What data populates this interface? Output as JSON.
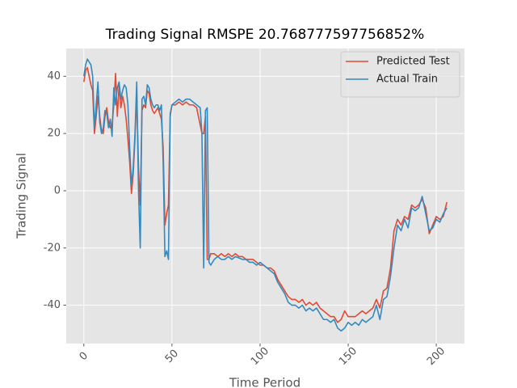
{
  "chart_data": {
    "type": "line",
    "title": "Trading Signal RMSPE 20.768777597756852%",
    "xlabel": "Time Period",
    "ylabel": "Trading Signal",
    "x": [
      0,
      1,
      2,
      3,
      4,
      5,
      6,
      7,
      8,
      9,
      10,
      11,
      12,
      13,
      14,
      15,
      16,
      17,
      18,
      19,
      20,
      21,
      22,
      23,
      24,
      25,
      26,
      27,
      28,
      29,
      30,
      31,
      32,
      33,
      34,
      35,
      36,
      37,
      38,
      39,
      40,
      41,
      42,
      43,
      44,
      45,
      46,
      47,
      48,
      49,
      50,
      52,
      54,
      56,
      58,
      60,
      62,
      64,
      66,
      67,
      68,
      69,
      70,
      71,
      72,
      74,
      76,
      78,
      80,
      82,
      84,
      86,
      88,
      90,
      92,
      94,
      96,
      98,
      100,
      102,
      104,
      106,
      108,
      110,
      112,
      114,
      116,
      118,
      120,
      122,
      124,
      126,
      128,
      130,
      132,
      134,
      136,
      138,
      140,
      142,
      144,
      146,
      148,
      150,
      152,
      154,
      156,
      158,
      160,
      162,
      164,
      166,
      168,
      170,
      172,
      174,
      176,
      178,
      180,
      182,
      184,
      186,
      188,
      190,
      192,
      194,
      196,
      198,
      200,
      202,
      204,
      206
    ],
    "series": [
      {
        "name": "Predicted Test",
        "color": "#E24A33",
        "values": [
          38,
          42,
          43,
          40,
          37,
          35,
          20,
          26,
          33,
          26,
          21,
          20,
          26,
          29,
          24,
          22,
          23,
          30,
          41,
          26,
          37,
          29,
          33,
          30,
          25,
          18,
          10,
          -1,
          6,
          18,
          34,
          8,
          -5,
          28,
          30,
          29,
          35,
          34,
          30,
          28,
          27,
          28,
          29,
          27,
          25,
          15,
          -12,
          -8,
          -5,
          26,
          30,
          30,
          31,
          30,
          31,
          30,
          30,
          29,
          23,
          20,
          20,
          26,
          -24,
          -24,
          -22,
          -22,
          -23,
          -22,
          -23,
          -22,
          -23,
          -22,
          -23,
          -23,
          -24,
          -24,
          -24,
          -25,
          -26,
          -26,
          -27,
          -27,
          -28,
          -31,
          -33,
          -35,
          -37,
          -38,
          -38,
          -39,
          -38,
          -40,
          -39,
          -40,
          -39,
          -41,
          -42,
          -43,
          -44,
          -44,
          -46,
          -45,
          -42,
          -44,
          -44,
          -44,
          -43,
          -42,
          -43,
          -42,
          -41,
          -38,
          -41,
          -35,
          -34,
          -27,
          -14,
          -10,
          -12,
          -9,
          -10,
          -5,
          -6,
          -5,
          -3,
          -6,
          -15,
          -12,
          -9,
          -10,
          -9,
          -4
        ]
      },
      {
        "name": "Actual Train",
        "color": "#348ABD",
        "values": [
          40,
          44,
          46,
          45,
          44,
          40,
          22,
          30,
          38,
          24,
          20,
          22,
          28,
          27,
          22,
          25,
          19,
          36,
          30,
          36,
          38,
          32,
          35,
          37,
          36,
          30,
          15,
          2,
          8,
          20,
          38,
          0,
          -20,
          32,
          33,
          30,
          37,
          36,
          32,
          30,
          29,
          30,
          30,
          28,
          30,
          10,
          -23,
          -21,
          -24,
          27,
          30,
          31,
          32,
          31,
          32,
          32,
          31,
          30,
          29,
          20,
          -27,
          28,
          29,
          -25,
          -26,
          -24,
          -23,
          -24,
          -24,
          -23,
          -24,
          -23,
          -23.5,
          -24,
          -24,
          -25,
          -25,
          -26,
          -25,
          -26,
          -27,
          -28,
          -29,
          -32,
          -34,
          -36,
          -39,
          -40,
          -40,
          -41,
          -40,
          -42,
          -41,
          -42,
          -41,
          -43,
          -45,
          -45,
          -46,
          -45,
          -48,
          -49,
          -48,
          -46,
          -47,
          -46,
          -47,
          -45,
          -46,
          -45,
          -44,
          -40,
          -45,
          -38,
          -37,
          -30,
          -20,
          -12,
          -14,
          -10,
          -13,
          -6,
          -7,
          -6,
          -2,
          -8,
          -14,
          -13,
          -10,
          -11,
          -8,
          -6
        ]
      }
    ],
    "xlim": [
      -10,
      216
    ],
    "ylim": [
      -53.4,
      49.7
    ],
    "xticks": [
      0,
      50,
      100,
      150,
      200
    ],
    "yticks": [
      -40,
      -20,
      0,
      20,
      40
    ],
    "grid": true,
    "legend": "upper right"
  }
}
